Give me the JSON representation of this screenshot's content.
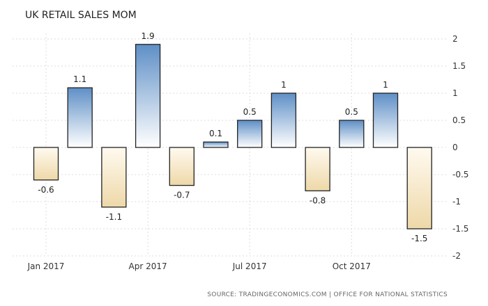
{
  "colors": {
    "positive_top": "#5e8fc6",
    "positive_bottom": "#ffffff",
    "negative_top": "#fffaf0",
    "negative_bottom": "#eed8a8"
  },
  "chart_data": {
    "type": "bar",
    "title": "UK RETAIL SALES MOM",
    "source": "SOURCE: TRADINGECONOMICS.COM | OFFICE FOR NATIONAL STATISTICS",
    "categories": [
      "Jan 2017",
      "Feb 2017",
      "Mar 2017",
      "Apr 2017",
      "May 2017",
      "Jun 2017",
      "Jul 2017",
      "Aug 2017",
      "Sep 2017",
      "Oct 2017",
      "Nov 2017",
      "Dec 2017"
    ],
    "values": [
      -0.6,
      1.1,
      -1.1,
      1.9,
      -0.7,
      0.1,
      0.5,
      1,
      -0.8,
      0.5,
      1,
      -1.5
    ],
    "data_labels": [
      "-0.6",
      "1.1",
      "-1.1",
      "1.9",
      "-0.7",
      "0.1",
      "0.5",
      "1",
      "-0.8",
      "0.5",
      "1",
      "-1.5"
    ],
    "x_tick_labels": [
      {
        "category": "Jan 2017",
        "label": "Jan 2017"
      },
      {
        "category": "Apr 2017",
        "label": "Apr 2017"
      },
      {
        "category": "Jul 2017",
        "label": "Jul 2017"
      },
      {
        "category": "Oct 2017",
        "label": "Oct 2017"
      }
    ],
    "y_ticks": [
      "2",
      "1.5",
      "1",
      "0.5",
      "0",
      "-0.5",
      "-1",
      "-1.5",
      "-2"
    ],
    "y_tick_values": [
      2,
      1.5,
      1,
      0.5,
      0,
      -0.5,
      -1,
      -1.5,
      -2
    ],
    "ylim": [
      -2,
      2
    ],
    "y_axis_position": "right",
    "grid": true,
    "xlabel": "",
    "ylabel": ""
  }
}
